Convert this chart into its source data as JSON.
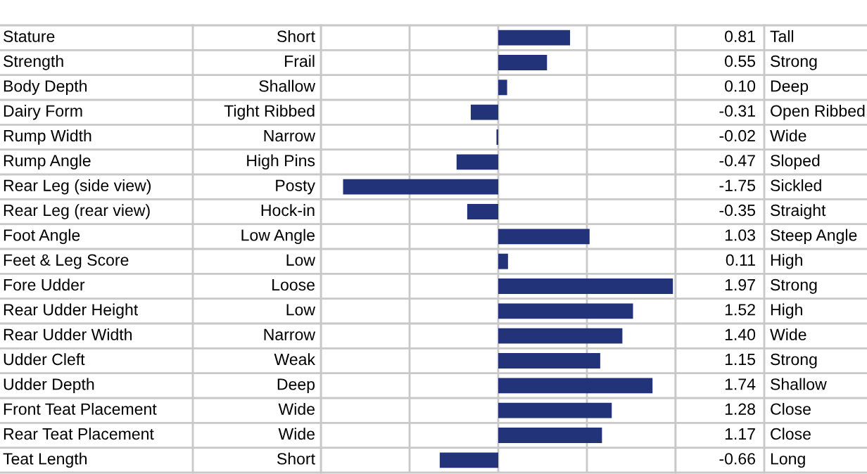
{
  "chart_data": {
    "type": "bar",
    "orientation": "horizontal",
    "color": "#22337a",
    "categories": [
      "Stature",
      "Strength",
      "Body Depth",
      "Dairy Form",
      "Rump Width",
      "Rump Angle",
      "Rear Leg (side view)",
      "Rear Leg (rear view)",
      "Foot Angle",
      "Feet & Leg Score",
      "Fore Udder",
      "Rear Udder Height",
      "Rear Udder Width",
      "Udder Cleft",
      "Udder Depth",
      "Front Teat Placement",
      "Rear Teat Placement",
      "Teat Length"
    ],
    "values": [
      0.81,
      0.55,
      0.1,
      -0.31,
      -0.02,
      -0.47,
      -1.75,
      -0.35,
      1.03,
      0.11,
      1.97,
      1.52,
      1.4,
      1.15,
      1.74,
      1.28,
      1.17,
      -0.66
    ],
    "value_labels": [
      "0.81",
      "0.55",
      "0.10",
      "-0.31",
      "-0.02",
      "-0.47",
      "-1.75",
      "-0.35",
      "1.03",
      "0.11",
      "1.97",
      "1.52",
      "1.40",
      "1.15",
      "1.74",
      "1.28",
      "1.17",
      "-0.66"
    ],
    "xlim": [
      -2,
      2
    ],
    "xticks": [
      {
        "value": -2,
        "label": null
      },
      {
        "value": -1,
        "label": null
      },
      {
        "value": 0,
        "label": null
      },
      {
        "value": 1,
        "label": null
      },
      {
        "value": 2,
        "label": null
      }
    ],
    "grid": "x",
    "legend": false,
    "annotations": [
      "Short",
      "Tall",
      "Frail",
      "Strong",
      "Shallow",
      "Deep",
      "Tight Ribbed",
      "Open Ribbed",
      "Narrow",
      "Wide",
      "High Pins",
      "Sloped",
      "Posty",
      "Sickled",
      "Hock-in",
      "Straight",
      "Low Angle",
      "Steep Angle",
      "Low",
      "High",
      "Loose",
      "Strong",
      "Low",
      "High",
      "Narrow",
      "Wide",
      "Weak",
      "Strong",
      "Deep",
      "Shallow",
      "Wide",
      "Close",
      "Wide",
      "Close",
      "Short",
      "Long"
    ]
  }
}
